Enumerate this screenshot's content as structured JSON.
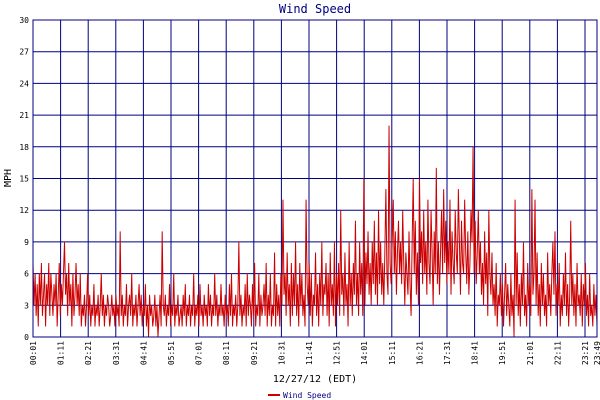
{
  "chart_data": {
    "type": "line",
    "title": "Wind Speed",
    "xlabel": "12/27/12 (EDT)",
    "ylabel": "MPH",
    "ylim": [
      0,
      30
    ],
    "y_ticks": [
      0,
      3,
      6,
      9,
      12,
      15,
      18,
      21,
      24,
      27,
      30
    ],
    "x_tick_labels": [
      "00:01",
      "01:11",
      "02:21",
      "03:31",
      "04:41",
      "05:51",
      "07:01",
      "08:11",
      "09:21",
      "10:31",
      "11:41",
      "12:51",
      "14:01",
      "15:11",
      "16:21",
      "17:31",
      "18:41",
      "19:51",
      "21:01",
      "22:11",
      "23:21",
      "23:49"
    ],
    "grid": true,
    "legend_position": "bottom-center",
    "series": [
      {
        "name": "Wind Speed",
        "color": "#cc0000",
        "x_range": [
          "00:01",
          "23:49"
        ],
        "values": [
          7,
          3,
          6,
          2,
          5,
          1,
          6,
          3,
          7,
          2,
          4,
          6,
          1,
          5,
          3,
          7,
          2,
          6,
          4,
          2,
          5,
          3,
          6,
          1,
          4,
          7,
          2,
          5,
          3,
          6,
          9,
          4,
          6,
          2,
          7,
          3,
          5,
          1,
          6,
          2,
          4,
          7,
          3,
          5,
          2,
          6,
          1,
          3,
          2,
          4,
          1,
          3,
          6,
          2,
          4,
          1,
          3,
          2,
          5,
          1,
          3,
          2,
          4,
          1,
          3,
          6,
          2,
          4,
          1,
          3,
          2,
          4,
          3,
          1,
          2,
          4,
          2,
          3,
          1,
          4,
          2,
          3,
          1,
          10,
          2,
          4,
          1,
          3,
          2,
          5,
          1,
          3,
          4,
          2,
          6,
          1,
          3,
          2,
          4,
          1,
          3,
          5,
          2,
          4,
          1,
          3,
          2,
          5,
          1,
          3,
          0,
          4,
          2,
          3,
          1,
          2,
          4,
          1,
          3,
          0,
          2,
          4,
          1,
          10,
          3,
          2,
          4,
          1,
          3,
          2,
          5,
          1,
          3,
          2,
          6,
          1,
          3,
          2,
          4,
          1,
          2,
          3,
          1,
          4,
          2,
          5,
          1,
          3,
          2,
          4,
          1,
          3,
          2,
          6,
          1,
          3,
          2,
          4,
          1,
          5,
          2,
          3,
          1,
          4,
          2,
          3,
          1,
          5,
          2,
          4,
          1,
          3,
          2,
          6,
          2,
          4,
          1,
          3,
          2,
          5,
          2,
          3,
          1,
          4,
          2,
          3,
          1,
          5,
          2,
          6,
          1,
          3,
          2,
          4,
          1,
          3,
          9,
          2,
          4,
          1,
          3,
          2,
          5,
          1,
          6,
          2,
          4,
          3,
          1,
          5,
          2,
          7,
          1,
          3,
          2,
          6,
          1,
          4,
          2,
          3,
          5,
          2,
          7,
          1,
          4,
          2,
          6,
          1,
          3,
          2,
          8,
          1,
          5,
          2,
          4,
          1,
          6,
          3,
          13,
          4,
          6,
          2,
          8,
          3,
          5,
          1,
          7,
          2,
          6,
          3,
          9,
          2,
          5,
          1,
          7,
          3,
          6,
          2,
          4,
          1,
          13,
          5,
          3,
          7,
          2,
          6,
          1,
          4,
          3,
          8,
          2,
          5,
          1,
          6,
          3,
          9,
          2,
          5,
          4,
          7,
          2,
          6,
          1,
          8,
          3,
          5,
          2,
          9,
          1,
          6,
          3,
          7,
          2,
          12,
          4,
          6,
          2,
          8,
          3,
          5,
          1,
          9,
          3,
          6,
          2,
          7,
          4,
          11,
          3,
          6,
          2,
          9,
          4,
          7,
          2,
          15,
          3,
          8,
          5,
          10,
          4,
          7,
          3,
          9,
          5,
          11,
          4,
          8,
          3,
          12,
          5,
          9,
          4,
          7,
          3,
          8,
          14,
          6,
          4,
          20,
          7,
          5,
          9,
          13,
          6,
          10,
          4,
          8,
          11,
          6,
          9,
          5,
          12,
          7,
          3,
          8,
          6,
          4,
          10,
          5,
          2,
          9,
          15,
          6,
          11,
          4,
          8,
          3,
          15,
          7,
          10,
          5,
          12,
          6,
          9,
          4,
          13,
          7,
          5,
          12,
          8,
          3,
          10,
          6,
          16,
          5,
          9,
          4,
          8,
          12,
          6,
          14,
          7,
          11,
          5,
          9,
          6,
          13,
          4,
          10,
          7,
          5,
          12,
          8,
          6,
          14,
          9,
          4,
          11,
          7,
          6,
          13,
          8,
          5,
          10,
          4,
          7,
          12,
          9,
          18,
          6,
          11,
          5,
          8,
          12,
          6,
          9,
          4,
          7,
          3,
          10,
          5,
          8,
          2,
          12,
          6,
          4,
          8,
          3,
          5,
          2,
          7,
          1,
          4,
          3,
          6,
          2,
          5,
          1,
          4,
          7,
          2,
          5,
          3,
          1,
          6,
          2,
          4,
          0,
          13,
          3,
          8,
          2,
          5,
          1,
          6,
          3,
          9,
          2,
          4,
          1,
          7,
          3,
          5,
          2,
          14,
          4,
          6,
          13,
          3,
          8,
          2,
          5,
          1,
          7,
          3,
          6,
          2,
          4,
          1,
          8,
          3,
          5,
          2,
          6,
          9,
          4,
          10,
          2,
          5,
          3,
          7,
          1,
          4,
          2,
          6,
          3,
          8,
          2,
          5,
          1,
          4,
          11,
          3,
          6,
          2,
          5,
          1,
          7,
          3,
          4,
          2,
          6,
          1,
          5,
          3,
          7,
          2,
          4,
          1,
          6,
          2,
          3,
          1,
          5,
          2,
          4,
          1
        ]
      }
    ]
  }
}
